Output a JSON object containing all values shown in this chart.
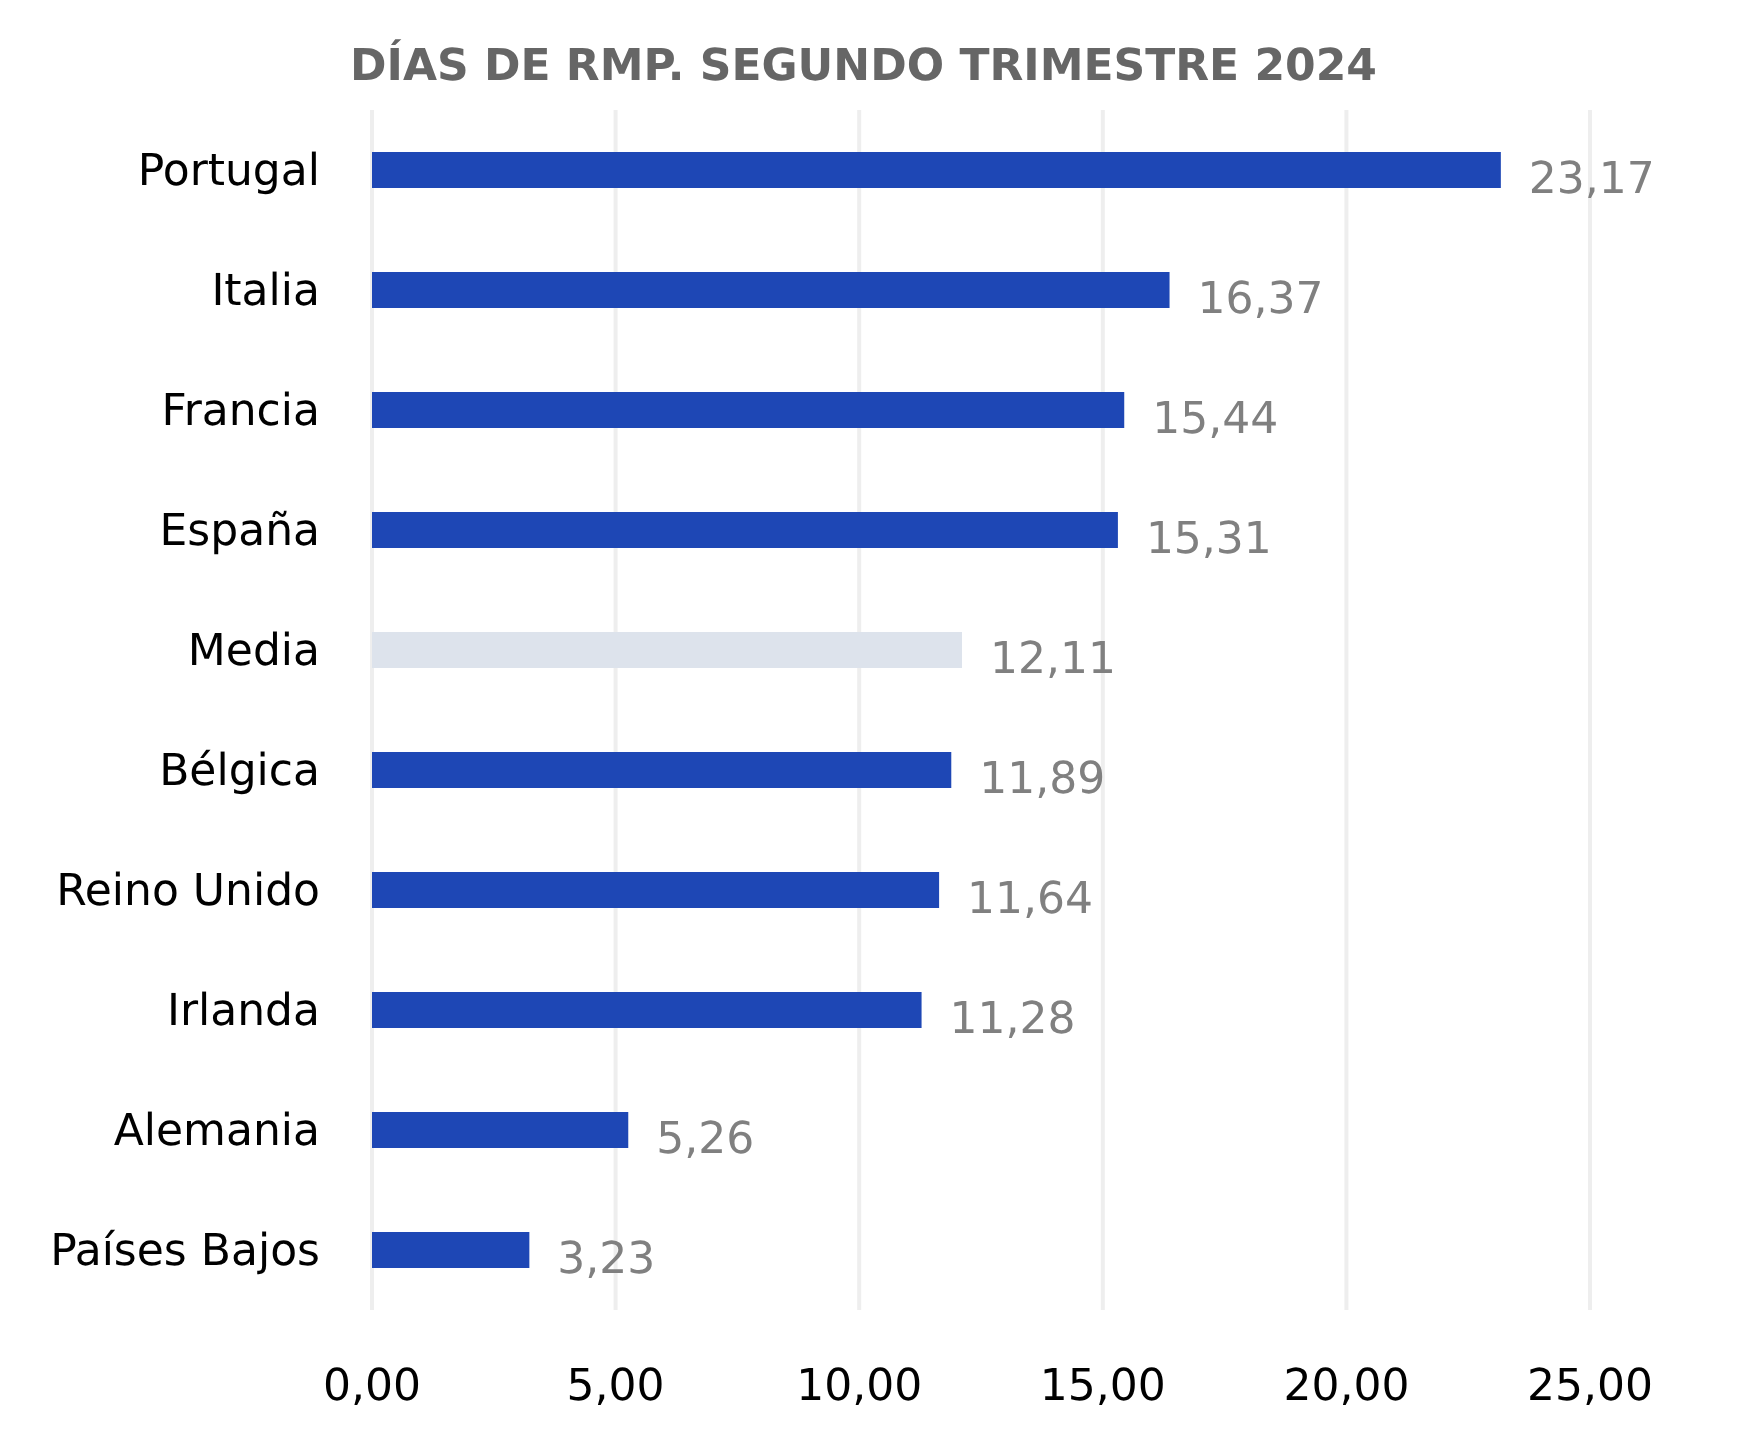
{
  "chart_data": {
    "type": "bar",
    "orientation": "horizontal",
    "title": "DÍAS DE RMP. SEGUNDO TRIMESTRE 2024",
    "categories": [
      "Portugal",
      "Italia",
      "Francia",
      "España",
      "Media",
      "Bélgica",
      "Reino Unido",
      "Irlanda",
      "Alemania",
      "Países Bajos"
    ],
    "values": [
      23.17,
      16.37,
      15.44,
      15.31,
      12.11,
      11.89,
      11.64,
      11.28,
      5.26,
      3.23
    ],
    "colors": [
      "#1e47b5",
      "#1e47b5",
      "#1e47b5",
      "#1e47b5",
      "#dde3ec",
      "#1e47b5",
      "#1e47b5",
      "#1e47b5",
      "#1e47b5",
      "#1e47b5"
    ],
    "value_labels": [
      "23,17",
      "16,37",
      "15,44",
      "15,31",
      "12,11",
      "11,89",
      "11,64",
      "11,28",
      "5,26",
      "3,23"
    ],
    "xlim": [
      0,
      25
    ],
    "xticks": [
      {
        "value": 0,
        "label": "0,00"
      },
      {
        "value": 5,
        "label": "5,00"
      },
      {
        "value": 10,
        "label": "10,00"
      },
      {
        "value": 15,
        "label": "15,00"
      },
      {
        "value": 20,
        "label": "20,00"
      },
      {
        "value": 25,
        "label": "25,00"
      }
    ],
    "grid": "x"
  }
}
